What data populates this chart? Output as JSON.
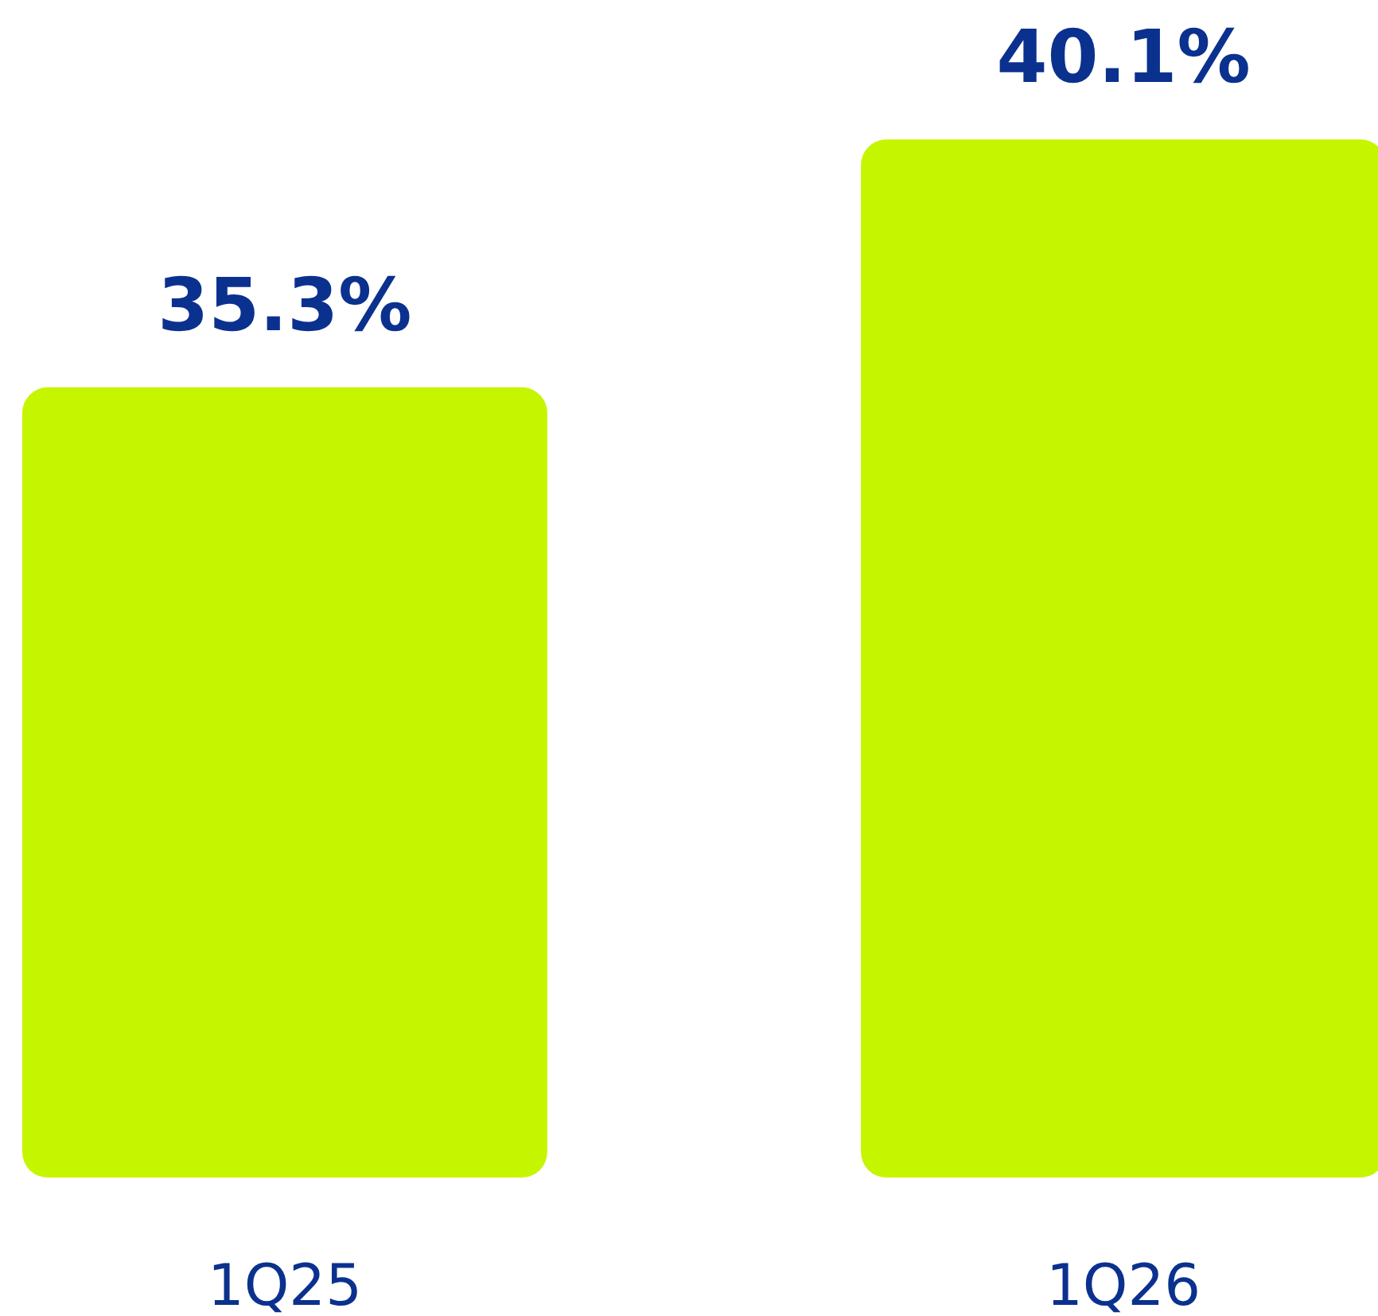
{
  "chart_data": {
    "type": "bar",
    "categories": [
      "1Q25",
      "1Q26"
    ],
    "values": [
      35.3,
      40.1
    ],
    "value_labels": [
      "35.3%",
      "40.1%"
    ],
    "color": "#c6f500",
    "ylim": [
      20,
      42.8
    ],
    "tick_labels": "x"
  }
}
